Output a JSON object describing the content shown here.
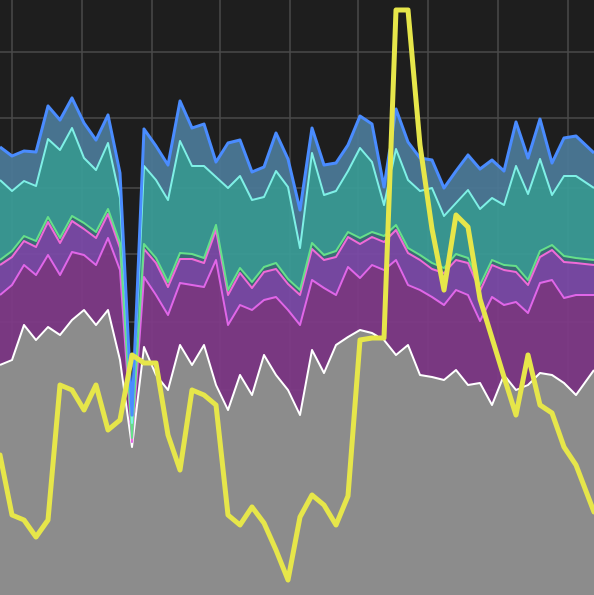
{
  "chart_data": {
    "type": "area",
    "stacked": true,
    "grid": true,
    "ylim": [
      0,
      595
    ],
    "x": [
      0,
      12,
      24,
      36,
      48,
      60,
      72,
      84,
      96,
      108,
      120,
      132,
      144,
      156,
      168,
      180,
      192,
      204,
      216,
      228,
      240,
      252,
      264,
      276,
      288,
      300,
      312,
      324,
      336,
      348,
      360,
      372,
      384,
      396,
      408,
      420,
      432,
      444,
      456,
      468,
      480,
      492,
      504,
      516,
      528,
      540,
      552,
      564,
      576,
      594
    ],
    "series": [
      {
        "color": "#8c8c8c",
        "edge": "#ffffff",
        "values": [
          230,
          235,
          270,
          255,
          268,
          260,
          275,
          285,
          270,
          285,
          235,
          148,
          248,
          220,
          205,
          250,
          230,
          250,
          210,
          185,
          220,
          200,
          240,
          220,
          205,
          180,
          245,
          222,
          250,
          258,
          265,
          262,
          255,
          240,
          250,
          220,
          218,
          215,
          225,
          210,
          212,
          190,
          220,
          205,
          210,
          222,
          220,
          212,
          200,
          225
        ]
      },
      {
        "color": "#7e3a87",
        "edge": "#e066e8",
        "values": [
          70,
          75,
          60,
          65,
          72,
          60,
          68,
          55,
          60,
          72,
          90,
          5,
          70,
          80,
          75,
          62,
          80,
          58,
          125,
          85,
          70,
          85,
          55,
          78,
          80,
          90,
          70,
          85,
          50,
          70,
          52,
          68,
          70,
          95,
          60,
          85,
          80,
          75,
          80,
          90,
          62,
          108,
          70,
          88,
          72,
          90,
          95,
          85,
          100,
          75
        ]
      },
      {
        "color": "#7a4aa6",
        "edge": "#f06ad8",
        "values": [
          30,
          28,
          24,
          28,
          33,
          32,
          31,
          26,
          27,
          24,
          22,
          2,
          28,
          32,
          28,
          24,
          26,
          24,
          30,
          30,
          32,
          22,
          28,
          28,
          26,
          30,
          31,
          28,
          38,
          30,
          34,
          28,
          28,
          30,
          32,
          30,
          28,
          32,
          30,
          32,
          30,
          32,
          35,
          30,
          28,
          26,
          30,
          36,
          32,
          30
        ]
      },
      {
        "color": "#3b6f7a",
        "edge": "#66e08a",
        "values": [
          5,
          6,
          5,
          6,
          5,
          5,
          5,
          6,
          6,
          5,
          5,
          2,
          5,
          5,
          5,
          6,
          5,
          5,
          5,
          5,
          5,
          6,
          5,
          6,
          5,
          5,
          6,
          5,
          6,
          5,
          6,
          5,
          6,
          5,
          5,
          5,
          6,
          5,
          6,
          5,
          6,
          5,
          5,
          6,
          5,
          6,
          5,
          6,
          5,
          5
        ]
      },
      {
        "color": "#3a9b96",
        "edge": "#7ff0e6",
        "values": [
          80,
          60,
          55,
          55,
          78,
          88,
          88,
          65,
          62,
          66,
          45,
          15,
          78,
          78,
          82,
          112,
          88,
          92,
          48,
          102,
          92,
          82,
          70,
          92,
          92,
          42,
          90,
          60,
          60,
          61,
          90,
          70,
          31,
          76,
          68,
          64,
          75,
          52,
          51,
          68,
          76,
          62,
          60,
          100,
          86,
          92,
          50,
          80,
          82,
          72
        ]
      },
      {
        "color": "#4b7896",
        "edge": "#4a8cff",
        "values": [
          33,
          35,
          30,
          34,
          33,
          30,
          30,
          35,
          30,
          28,
          25,
          8,
          37,
          34,
          35,
          40,
          38,
          42,
          15,
          45,
          36,
          28,
          30,
          38,
          28,
          38,
          25,
          30,
          28,
          26,
          32,
          38,
          18,
          40,
          38,
          33,
          28,
          28,
          32,
          35,
          40,
          38,
          34,
          44,
          36,
          40,
          32,
          38,
          40,
          35
        ]
      }
    ],
    "line": {
      "color": "#e6e64a",
      "values": [
        140,
        80,
        75,
        58,
        75,
        210,
        205,
        185,
        210,
        165,
        175,
        240,
        232,
        232,
        160,
        125,
        205,
        200,
        190,
        80,
        70,
        88,
        72,
        45,
        15,
        78,
        100,
        90,
        70,
        99,
        255,
        257,
        257,
        585,
        585,
        450,
        366,
        305,
        380,
        368,
        296,
        257,
        218,
        180,
        240,
        190,
        182,
        148,
        130,
        83
      ]
    }
  }
}
